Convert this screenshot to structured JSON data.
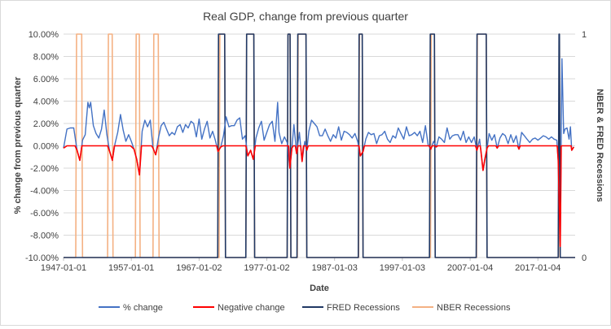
{
  "chart_data": {
    "type": "line",
    "title": "Real GDP, change from previous quarter",
    "xlabel": "Date",
    "ylabel": "% change from previous quarter",
    "y2label": "NBER & FRED Recessions",
    "ylim": [
      -10,
      10
    ],
    "y2lim": [
      0,
      1
    ],
    "y_ticks": [
      "10.00%",
      "8.00%",
      "6.00%",
      "4.00%",
      "2.00%",
      "0.00%",
      "-2.00%",
      "-4.00%",
      "-6.00%",
      "-8.00%",
      "-10.00%"
    ],
    "y2_ticks": [
      "1",
      "0"
    ],
    "x_range": [
      1947.0,
      2022.5
    ],
    "x_ticks": [
      {
        "label": "1947-01-01",
        "x": 1947.0
      },
      {
        "label": "1957-01-01",
        "x": 1957.0
      },
      {
        "label": "1967-01-02",
        "x": 1967.0
      },
      {
        "label": "1977-01-02",
        "x": 1977.0
      },
      {
        "label": "1987-01-03",
        "x": 1987.0
      },
      {
        "label": "1997-01-03",
        "x": 1997.0
      },
      {
        "label": "2007-01-04",
        "x": 2007.0
      },
      {
        "label": "2017-01-04",
        "x": 2017.0
      }
    ],
    "legend_position": "bottom",
    "series": [
      {
        "name": "% change",
        "color": "#4472c4",
        "axis": "left",
        "points": [
          [
            1947.0,
            -0.2
          ],
          [
            1947.5,
            1.5
          ],
          [
            1948.0,
            1.6
          ],
          [
            1948.5,
            1.6
          ],
          [
            1949.0,
            -0.4
          ],
          [
            1949.4,
            -1.3
          ],
          [
            1949.8,
            0.5
          ],
          [
            1950.2,
            1.0
          ],
          [
            1950.6,
            3.9
          ],
          [
            1950.8,
            3.4
          ],
          [
            1951.0,
            3.9
          ],
          [
            1951.4,
            1.8
          ],
          [
            1951.8,
            1.1
          ],
          [
            1952.2,
            0.7
          ],
          [
            1952.6,
            1.5
          ],
          [
            1953.0,
            3.2
          ],
          [
            1953.4,
            1.0
          ],
          [
            1953.8,
            -0.5
          ],
          [
            1954.2,
            -1.3
          ],
          [
            1954.6,
            0.2
          ],
          [
            1955.0,
            1.2
          ],
          [
            1955.4,
            2.8
          ],
          [
            1955.8,
            1.4
          ],
          [
            1956.2,
            0.4
          ],
          [
            1956.6,
            1.0
          ],
          [
            1957.0,
            0.4
          ],
          [
            1957.4,
            -0.3
          ],
          [
            1957.8,
            -1.2
          ],
          [
            1958.2,
            -2.6
          ],
          [
            1958.6,
            1.3
          ],
          [
            1959.0,
            2.3
          ],
          [
            1959.4,
            1.7
          ],
          [
            1959.8,
            2.3
          ],
          [
            1960.2,
            -0.2
          ],
          [
            1960.6,
            -0.8
          ],
          [
            1961.0,
            0.7
          ],
          [
            1961.4,
            1.8
          ],
          [
            1961.8,
            2.1
          ],
          [
            1962.2,
            1.5
          ],
          [
            1962.6,
            0.9
          ],
          [
            1963.0,
            1.2
          ],
          [
            1963.4,
            1.0
          ],
          [
            1963.8,
            1.7
          ],
          [
            1964.2,
            1.9
          ],
          [
            1964.6,
            1.2
          ],
          [
            1965.0,
            1.9
          ],
          [
            1965.4,
            1.6
          ],
          [
            1965.8,
            2.2
          ],
          [
            1966.2,
            2.0
          ],
          [
            1966.6,
            0.8
          ],
          [
            1967.0,
            2.4
          ],
          [
            1967.4,
            0.6
          ],
          [
            1967.8,
            1.5
          ],
          [
            1968.2,
            2.2
          ],
          [
            1968.6,
            0.7
          ],
          [
            1969.0,
            1.3
          ],
          [
            1969.4,
            0.5
          ],
          [
            1969.8,
            -0.5
          ],
          [
            1970.2,
            -0.1
          ],
          [
            1970.6,
            0.9
          ],
          [
            1971.0,
            2.6
          ],
          [
            1971.4,
            1.7
          ],
          [
            1971.8,
            1.8
          ],
          [
            1972.2,
            1.8
          ],
          [
            1972.6,
            2.3
          ],
          [
            1973.0,
            2.5
          ],
          [
            1973.4,
            0.6
          ],
          [
            1973.8,
            0.9
          ],
          [
            1974.2,
            -0.9
          ],
          [
            1974.6,
            -0.4
          ],
          [
            1975.0,
            -1.2
          ],
          [
            1975.4,
            0.7
          ],
          [
            1975.8,
            1.6
          ],
          [
            1976.2,
            2.2
          ],
          [
            1976.6,
            0.5
          ],
          [
            1977.0,
            1.2
          ],
          [
            1977.4,
            1.9
          ],
          [
            1977.8,
            2.2
          ],
          [
            1978.2,
            0.4
          ],
          [
            1978.6,
            3.9
          ],
          [
            1978.8,
            1.2
          ],
          [
            1979.2,
            0.2
          ],
          [
            1979.6,
            0.8
          ],
          [
            1980.0,
            0.3
          ],
          [
            1980.4,
            -2.0
          ],
          [
            1980.7,
            -0.2
          ],
          [
            1981.0,
            1.9
          ],
          [
            1981.4,
            -0.7
          ],
          [
            1981.8,
            1.2
          ],
          [
            1982.2,
            -1.4
          ],
          [
            1982.6,
            0.4
          ],
          [
            1982.9,
            -0.4
          ],
          [
            1983.2,
            1.3
          ],
          [
            1983.6,
            2.3
          ],
          [
            1984.0,
            2.0
          ],
          [
            1984.4,
            1.7
          ],
          [
            1984.8,
            0.9
          ],
          [
            1985.2,
            0.9
          ],
          [
            1985.6,
            1.5
          ],
          [
            1986.0,
            0.9
          ],
          [
            1986.4,
            0.4
          ],
          [
            1986.8,
            1.0
          ],
          [
            1987.2,
            0.7
          ],
          [
            1987.6,
            1.7
          ],
          [
            1988.0,
            0.5
          ],
          [
            1988.4,
            1.3
          ],
          [
            1988.8,
            1.2
          ],
          [
            1989.2,
            1.0
          ],
          [
            1989.6,
            0.7
          ],
          [
            1990.0,
            1.1
          ],
          [
            1990.4,
            0.4
          ],
          [
            1990.8,
            -0.9
          ],
          [
            1991.2,
            -0.5
          ],
          [
            1991.6,
            0.6
          ],
          [
            1992.0,
            1.2
          ],
          [
            1992.4,
            1.0
          ],
          [
            1992.8,
            1.1
          ],
          [
            1993.2,
            0.2
          ],
          [
            1993.6,
            0.9
          ],
          [
            1994.0,
            1.0
          ],
          [
            1994.4,
            1.3
          ],
          [
            1994.8,
            0.6
          ],
          [
            1995.2,
            0.3
          ],
          [
            1995.6,
            0.9
          ],
          [
            1996.0,
            0.7
          ],
          [
            1996.4,
            1.6
          ],
          [
            1996.8,
            1.1
          ],
          [
            1997.2,
            0.6
          ],
          [
            1997.6,
            1.7
          ],
          [
            1998.0,
            0.9
          ],
          [
            1998.4,
            1.0
          ],
          [
            1998.8,
            1.2
          ],
          [
            1999.2,
            0.9
          ],
          [
            1999.6,
            1.3
          ],
          [
            2000.0,
            0.3
          ],
          [
            2000.4,
            1.8
          ],
          [
            2000.8,
            0.1
          ],
          [
            2001.2,
            -0.3
          ],
          [
            2001.6,
            0.4
          ],
          [
            2002.0,
            -0.1
          ],
          [
            2002.4,
            0.8
          ],
          [
            2002.8,
            0.6
          ],
          [
            2003.2,
            0.3
          ],
          [
            2003.6,
            1.6
          ],
          [
            2004.0,
            0.6
          ],
          [
            2004.4,
            0.9
          ],
          [
            2004.8,
            1.0
          ],
          [
            2005.2,
            1.0
          ],
          [
            2005.6,
            0.5
          ],
          [
            2006.0,
            1.3
          ],
          [
            2006.4,
            0.3
          ],
          [
            2006.8,
            0.8
          ],
          [
            2007.2,
            0.3
          ],
          [
            2007.6,
            0.8
          ],
          [
            2008.0,
            -0.4
          ],
          [
            2008.4,
            0.6
          ],
          [
            2008.6,
            -0.5
          ],
          [
            2008.9,
            -2.2
          ],
          [
            2009.2,
            -1.1
          ],
          [
            2009.5,
            -0.2
          ],
          [
            2009.8,
            1.1
          ],
          [
            2010.2,
            0.5
          ],
          [
            2010.6,
            1.0
          ],
          [
            2011.0,
            -0.2
          ],
          [
            2011.4,
            0.7
          ],
          [
            2011.8,
            1.1
          ],
          [
            2012.2,
            0.9
          ],
          [
            2012.6,
            0.2
          ],
          [
            2013.0,
            1.0
          ],
          [
            2013.4,
            0.3
          ],
          [
            2013.8,
            0.9
          ],
          [
            2014.2,
            -0.3
          ],
          [
            2014.6,
            1.2
          ],
          [
            2015.0,
            0.9
          ],
          [
            2015.4,
            0.6
          ],
          [
            2015.8,
            0.3
          ],
          [
            2016.2,
            0.6
          ],
          [
            2016.6,
            0.7
          ],
          [
            2017.0,
            0.5
          ],
          [
            2017.4,
            0.7
          ],
          [
            2017.8,
            0.9
          ],
          [
            2018.2,
            0.8
          ],
          [
            2018.6,
            0.6
          ],
          [
            2019.0,
            0.8
          ],
          [
            2019.4,
            0.6
          ],
          [
            2019.8,
            0.5
          ],
          [
            2020.0,
            -1.3
          ],
          [
            2020.3,
            -9.0
          ],
          [
            2020.55,
            7.8
          ],
          [
            2020.8,
            1.1
          ],
          [
            2021.0,
            1.5
          ],
          [
            2021.3,
            1.6
          ],
          [
            2021.6,
            0.6
          ],
          [
            2021.8,
            1.7
          ],
          [
            2022.0,
            -0.4
          ],
          [
            2022.3,
            -0.1
          ]
        ]
      },
      {
        "name": "Negative change",
        "color": "#ff0000",
        "axis": "left",
        "points": [
          [
            1947.0,
            -0.2
          ],
          [
            1947.5,
            0
          ],
          [
            1948.7,
            0
          ],
          [
            1949.0,
            -0.4
          ],
          [
            1949.4,
            -1.3
          ],
          [
            1949.7,
            0
          ],
          [
            1953.5,
            0
          ],
          [
            1953.8,
            -0.5
          ],
          [
            1954.2,
            -1.3
          ],
          [
            1954.5,
            0
          ],
          [
            1956.9,
            0
          ],
          [
            1957.4,
            -0.3
          ],
          [
            1957.8,
            -1.2
          ],
          [
            1958.2,
            -2.6
          ],
          [
            1958.5,
            0
          ],
          [
            1960.0,
            0
          ],
          [
            1960.2,
            -0.2
          ],
          [
            1960.6,
            -0.8
          ],
          [
            1960.9,
            0
          ],
          [
            1969.6,
            0
          ],
          [
            1969.8,
            -0.5
          ],
          [
            1970.2,
            -0.1
          ],
          [
            1970.5,
            0
          ],
          [
            1973.9,
            0
          ],
          [
            1974.2,
            -0.9
          ],
          [
            1974.6,
            -0.4
          ],
          [
            1975.0,
            -1.2
          ],
          [
            1975.3,
            0
          ],
          [
            1980.2,
            0
          ],
          [
            1980.4,
            -2.0
          ],
          [
            1980.7,
            -0.2
          ],
          [
            1980.9,
            0
          ],
          [
            1981.2,
            0
          ],
          [
            1981.4,
            -0.7
          ],
          [
            1981.6,
            0
          ],
          [
            1982.0,
            0
          ],
          [
            1982.2,
            -1.4
          ],
          [
            1982.4,
            0
          ],
          [
            1982.75,
            0
          ],
          [
            1982.9,
            -0.4
          ],
          [
            1983.1,
            0
          ],
          [
            1990.6,
            0
          ],
          [
            1990.8,
            -0.9
          ],
          [
            1991.2,
            -0.5
          ],
          [
            1991.4,
            0
          ],
          [
            2001.0,
            0
          ],
          [
            2001.2,
            -0.3
          ],
          [
            2001.4,
            0
          ],
          [
            2001.8,
            0
          ],
          [
            2002.0,
            -0.1
          ],
          [
            2002.2,
            0
          ],
          [
            2007.8,
            0
          ],
          [
            2008.0,
            -0.4
          ],
          [
            2008.2,
            0
          ],
          [
            2008.5,
            0
          ],
          [
            2008.6,
            -0.5
          ],
          [
            2008.9,
            -2.2
          ],
          [
            2009.2,
            -1.1
          ],
          [
            2009.5,
            -0.2
          ],
          [
            2009.7,
            0
          ],
          [
            2010.8,
            0
          ],
          [
            2011.0,
            -0.2
          ],
          [
            2011.2,
            0
          ],
          [
            2014.0,
            0
          ],
          [
            2014.2,
            -0.3
          ],
          [
            2014.4,
            0
          ],
          [
            2019.85,
            0
          ],
          [
            2020.0,
            -1.3
          ],
          [
            2020.3,
            -9.0
          ],
          [
            2020.45,
            0
          ],
          [
            2021.9,
            0
          ],
          [
            2022.0,
            -0.4
          ],
          [
            2022.3,
            -0.1
          ]
        ]
      },
      {
        "name": "FRED Recessions",
        "color": "#203864",
        "axis": "right",
        "intervals": [
          [
            1969.75,
            1970.9
          ],
          [
            1973.9,
            1975.2
          ],
          [
            1980.0,
            1980.55
          ],
          [
            1981.45,
            1982.9
          ],
          [
            1990.5,
            1991.2
          ],
          [
            2001.0,
            2001.85
          ],
          [
            2007.9,
            2009.5
          ],
          [
            2020.0,
            2020.3
          ]
        ]
      },
      {
        "name": "NBER Recessions",
        "color": "#f4b183",
        "axis": "right",
        "intervals": [
          [
            1948.8,
            1949.8
          ],
          [
            1953.5,
            1954.3
          ],
          [
            1957.6,
            1958.3
          ],
          [
            1960.2,
            1961.1
          ],
          [
            1969.95,
            1970.9
          ],
          [
            1973.9,
            1975.2
          ],
          [
            1980.0,
            1980.55
          ],
          [
            1981.5,
            1982.9
          ],
          [
            1990.55,
            1991.2
          ],
          [
            2001.15,
            2001.85
          ],
          [
            2007.95,
            2009.5
          ],
          [
            2020.05,
            2020.3
          ]
        ]
      }
    ]
  }
}
